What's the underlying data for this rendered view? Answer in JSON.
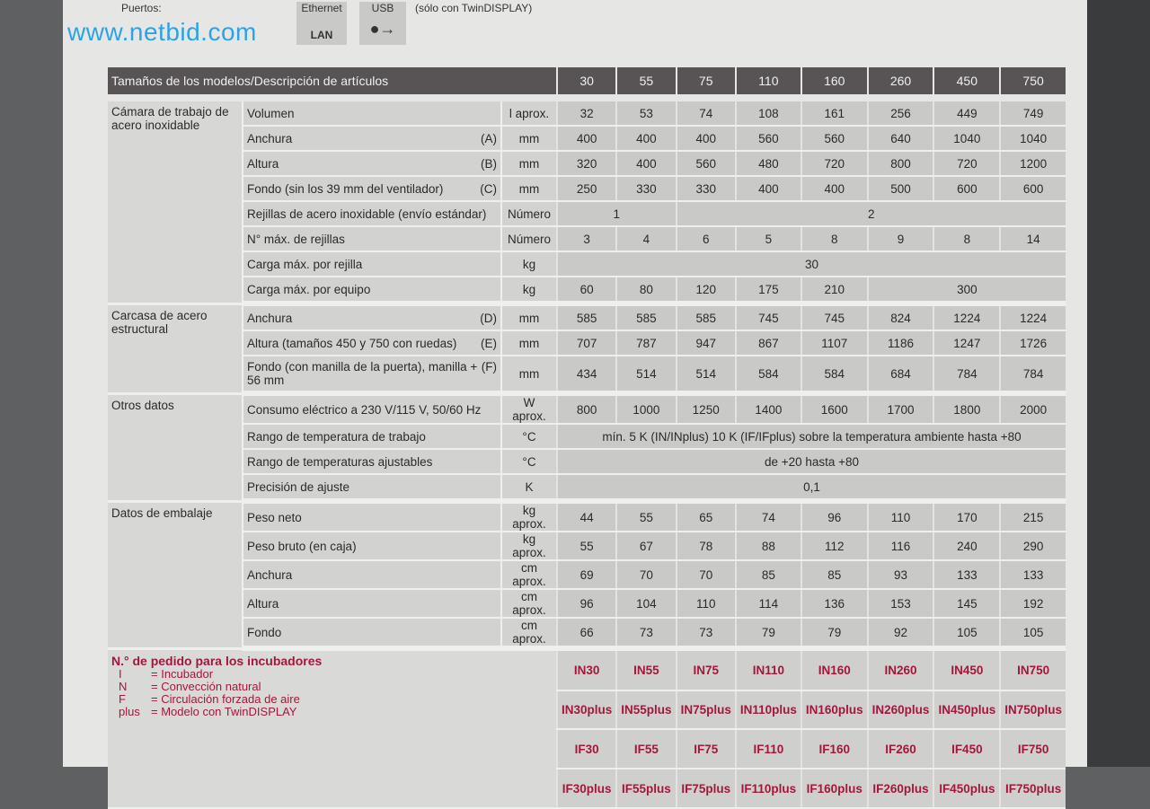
{
  "top": {
    "ports_label": "Puertos:",
    "ethernet_label": "Ethernet",
    "lan_label": "LAN",
    "usb_label": "USB",
    "usb_note": "(sólo con TwinDISPLAY)",
    "watermark": "www.netbid.com"
  },
  "header": {
    "title": "Tamaños de los modelos/Descripción de artículos",
    "sizes": [
      "30",
      "55",
      "75",
      "110",
      "160",
      "260",
      "450",
      "750"
    ]
  },
  "sections": [
    {
      "group": "Cámara de trabajo de acero inoxidable",
      "rows": [
        {
          "label": "Volumen",
          "letter": "",
          "unit": "l aprox.",
          "values": [
            {
              "t": "32",
              "s": 1
            },
            {
              "t": "53",
              "s": 1
            },
            {
              "t": "74",
              "s": 1
            },
            {
              "t": "108",
              "s": 1
            },
            {
              "t": "161",
              "s": 1
            },
            {
              "t": "256",
              "s": 1
            },
            {
              "t": "449",
              "s": 1
            },
            {
              "t": "749",
              "s": 1
            }
          ]
        },
        {
          "label": "Anchura",
          "letter": "(A)",
          "unit": "mm",
          "values": [
            {
              "t": "400",
              "s": 1
            },
            {
              "t": "400",
              "s": 1
            },
            {
              "t": "400",
              "s": 1
            },
            {
              "t": "560",
              "s": 1
            },
            {
              "t": "560",
              "s": 1
            },
            {
              "t": "640",
              "s": 1
            },
            {
              "t": "1040",
              "s": 1
            },
            {
              "t": "1040",
              "s": 1
            }
          ]
        },
        {
          "label": "Altura",
          "letter": "(B)",
          "unit": "mm",
          "values": [
            {
              "t": "320",
              "s": 1
            },
            {
              "t": "400",
              "s": 1
            },
            {
              "t": "560",
              "s": 1
            },
            {
              "t": "480",
              "s": 1
            },
            {
              "t": "720",
              "s": 1
            },
            {
              "t": "800",
              "s": 1
            },
            {
              "t": "720",
              "s": 1
            },
            {
              "t": "1200",
              "s": 1
            }
          ]
        },
        {
          "label": "Fondo (sin los 39 mm del ventilador)",
          "letter": "(C)",
          "unit": "mm",
          "values": [
            {
              "t": "250",
              "s": 1
            },
            {
              "t": "330",
              "s": 1
            },
            {
              "t": "330",
              "s": 1
            },
            {
              "t": "400",
              "s": 1
            },
            {
              "t": "400",
              "s": 1
            },
            {
              "t": "500",
              "s": 1
            },
            {
              "t": "600",
              "s": 1
            },
            {
              "t": "600",
              "s": 1
            }
          ]
        },
        {
          "label": "Rejillas de acero inoxidable (envío estándar)",
          "letter": "",
          "unit": "Número",
          "values": [
            {
              "t": "1",
              "s": 2
            },
            {
              "t": "2",
              "s": 6
            }
          ]
        },
        {
          "label": "N° máx. de rejillas",
          "letter": "",
          "unit": "Número",
          "values": [
            {
              "t": "3",
              "s": 1
            },
            {
              "t": "4",
              "s": 1
            },
            {
              "t": "6",
              "s": 1
            },
            {
              "t": "5",
              "s": 1
            },
            {
              "t": "8",
              "s": 1
            },
            {
              "t": "9",
              "s": 1
            },
            {
              "t": "8",
              "s": 1
            },
            {
              "t": "14",
              "s": 1
            }
          ]
        },
        {
          "label": "Carga máx. por rejilla",
          "letter": "",
          "unit": "kg",
          "values": [
            {
              "t": "30",
              "s": 8
            }
          ]
        },
        {
          "label": "Carga máx. por equipo",
          "letter": "",
          "unit": "kg",
          "values": [
            {
              "t": "60",
              "s": 1
            },
            {
              "t": "80",
              "s": 1
            },
            {
              "t": "120",
              "s": 1
            },
            {
              "t": "175",
              "s": 1
            },
            {
              "t": "210",
              "s": 1
            },
            {
              "t": "300",
              "s": 3
            }
          ]
        }
      ]
    },
    {
      "group": "Carcasa de acero estructural",
      "rows": [
        {
          "label": "Anchura",
          "letter": "(D)",
          "unit": "mm",
          "values": [
            {
              "t": "585",
              "s": 1
            },
            {
              "t": "585",
              "s": 1
            },
            {
              "t": "585",
              "s": 1
            },
            {
              "t": "745",
              "s": 1
            },
            {
              "t": "745",
              "s": 1
            },
            {
              "t": "824",
              "s": 1
            },
            {
              "t": "1224",
              "s": 1
            },
            {
              "t": "1224",
              "s": 1
            }
          ]
        },
        {
          "label": "Altura (tamaños 450 y 750 con ruedas)",
          "letter": "(E)",
          "unit": "mm",
          "values": [
            {
              "t": "707",
              "s": 1
            },
            {
              "t": "787",
              "s": 1
            },
            {
              "t": "947",
              "s": 1
            },
            {
              "t": "867",
              "s": 1
            },
            {
              "t": "1107",
              "s": 1
            },
            {
              "t": "1186",
              "s": 1
            },
            {
              "t": "1247",
              "s": 1
            },
            {
              "t": "1726",
              "s": 1
            }
          ]
        },
        {
          "label": "Fondo (con manilla de la puerta), manilla + 56 mm",
          "letter": "(F)",
          "unit": "mm",
          "values": [
            {
              "t": "434",
              "s": 1
            },
            {
              "t": "514",
              "s": 1
            },
            {
              "t": "514",
              "s": 1
            },
            {
              "t": "584",
              "s": 1
            },
            {
              "t": "584",
              "s": 1
            },
            {
              "t": "684",
              "s": 1
            },
            {
              "t": "784",
              "s": 1
            },
            {
              "t": "784",
              "s": 1
            }
          ]
        }
      ]
    },
    {
      "group": "Otros datos",
      "rows": [
        {
          "label": "Consumo eléctrico a 230 V/115 V, 50/60 Hz",
          "letter": "",
          "unit": "W aprox.",
          "values": [
            {
              "t": "800",
              "s": 1
            },
            {
              "t": "1000",
              "s": 1
            },
            {
              "t": "1250",
              "s": 1
            },
            {
              "t": "1400",
              "s": 1
            },
            {
              "t": "1600",
              "s": 1
            },
            {
              "t": "1700",
              "s": 1
            },
            {
              "t": "1800",
              "s": 1
            },
            {
              "t": "2000",
              "s": 1
            }
          ]
        },
        {
          "label": "Rango de temperatura de trabajo",
          "letter": "",
          "unit": "°C",
          "values": [
            {
              "t": "mín. 5 K (IN/INplus) 10 K (IF/IFplus) sobre la temperatura ambiente hasta +80",
              "s": 8
            }
          ]
        },
        {
          "label": "Rango de temperaturas ajustables",
          "letter": "",
          "unit": "°C",
          "values": [
            {
              "t": "de +20 hasta +80",
              "s": 8
            }
          ]
        },
        {
          "label": "Precisión de ajuste",
          "letter": "",
          "unit": "K",
          "values": [
            {
              "t": "0,1",
              "s": 8
            }
          ]
        }
      ]
    },
    {
      "group": "Datos de embalaje",
      "rows": [
        {
          "label": "Peso neto",
          "letter": "",
          "unit": "kg aprox.",
          "values": [
            {
              "t": "44",
              "s": 1
            },
            {
              "t": "55",
              "s": 1
            },
            {
              "t": "65",
              "s": 1
            },
            {
              "t": "74",
              "s": 1
            },
            {
              "t": "96",
              "s": 1
            },
            {
              "t": "110",
              "s": 1
            },
            {
              "t": "170",
              "s": 1
            },
            {
              "t": "215",
              "s": 1
            }
          ]
        },
        {
          "label": "Peso bruto (en caja)",
          "letter": "",
          "unit": "kg aprox.",
          "values": [
            {
              "t": "55",
              "s": 1
            },
            {
              "t": "67",
              "s": 1
            },
            {
              "t": "78",
              "s": 1
            },
            {
              "t": "88",
              "s": 1
            },
            {
              "t": "112",
              "s": 1
            },
            {
              "t": "116",
              "s": 1
            },
            {
              "t": "240",
              "s": 1
            },
            {
              "t": "290",
              "s": 1
            }
          ]
        },
        {
          "label": "Anchura",
          "letter": "",
          "unit": "cm aprox.",
          "values": [
            {
              "t": "69",
              "s": 1
            },
            {
              "t": "70",
              "s": 1
            },
            {
              "t": "70",
              "s": 1
            },
            {
              "t": "85",
              "s": 1
            },
            {
              "t": "85",
              "s": 1
            },
            {
              "t": "93",
              "s": 1
            },
            {
              "t": "133",
              "s": 1
            },
            {
              "t": "133",
              "s": 1
            }
          ]
        },
        {
          "label": "Altura",
          "letter": "",
          "unit": "cm aprox.",
          "values": [
            {
              "t": "96",
              "s": 1
            },
            {
              "t": "104",
              "s": 1
            },
            {
              "t": "110",
              "s": 1
            },
            {
              "t": "114",
              "s": 1
            },
            {
              "t": "136",
              "s": 1
            },
            {
              "t": "153",
              "s": 1
            },
            {
              "t": "145",
              "s": 1
            },
            {
              "t": "192",
              "s": 1
            }
          ]
        },
        {
          "label": "Fondo",
          "letter": "",
          "unit": "cm aprox.",
          "values": [
            {
              "t": "66",
              "s": 1
            },
            {
              "t": "73",
              "s": 1
            },
            {
              "t": "73",
              "s": 1
            },
            {
              "t": "79",
              "s": 1
            },
            {
              "t": "79",
              "s": 1
            },
            {
              "t": "92",
              "s": 1
            },
            {
              "t": "105",
              "s": 1
            },
            {
              "t": "105",
              "s": 1
            }
          ]
        }
      ]
    }
  ],
  "order": {
    "title": "N.° de pedido para los incubadores",
    "legend": [
      {
        "k": "I",
        "v": "= Incubador"
      },
      {
        "k": "N",
        "v": "= Convección natural"
      },
      {
        "k": "F",
        "v": "= Circulación forzada de aire"
      },
      {
        "k": "plus",
        "v": "= Modelo con TwinDISPLAY"
      }
    ],
    "rows": [
      [
        "IN30",
        "IN55",
        "IN75",
        "IN110",
        "IN160",
        "IN260",
        "IN450",
        "IN750"
      ],
      [
        "IN30plus",
        "IN55plus",
        "IN75plus",
        "IN110plus",
        "IN160plus",
        "IN260plus",
        "IN450plus",
        "IN750plus"
      ],
      [
        "IF30",
        "IF55",
        "IF75",
        "IF110",
        "IF160",
        "IF260",
        "IF450",
        "IF750"
      ],
      [
        "IF30plus",
        "IF55plus",
        "IF75plus",
        "IF110plus",
        "IF160plus",
        "IF260plus",
        "IF450plus",
        "IF750plus"
      ]
    ],
    "color": "#a3173a"
  }
}
